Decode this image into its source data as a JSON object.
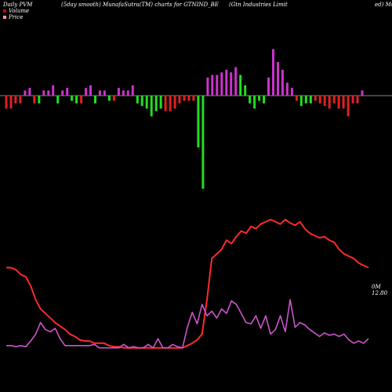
{
  "header": {
    "left": "Daily PVM",
    "mid": "(5day smooth) MunafaSutra(TM) charts for GTNIND_BE",
    "right": "(Gtn Industries Limit",
    "right2": "ed) Mu"
  },
  "legend": {
    "volume_label": "Volume",
    "volume_color": "#cc0000",
    "price_label": "Price",
    "price_color": "#ff9999"
  },
  "last_value": {
    "volume_text": "0M",
    "price_text": "12.80"
  },
  "colors": {
    "background": "#000000",
    "axis": "#aaaaaa",
    "up_bar": "#cc33cc",
    "down_bar_red": "#dd2222",
    "down_bar_green": "#22dd22",
    "price_line": "#ff2a2a",
    "volume_line": "#cc55cc"
  },
  "chart_data": {
    "type": "bar",
    "title": "",
    "xlabel": "",
    "ylabel": "",
    "grid": false,
    "bars": {
      "values": [
        -5,
        -5,
        -3,
        -3,
        2,
        3,
        -3,
        -3,
        2,
        2,
        4,
        -3,
        2,
        3,
        -2,
        -3,
        -3,
        3,
        4,
        -3,
        2,
        2,
        -2,
        -2,
        3,
        2,
        2,
        4,
        -3,
        -4,
        -5,
        -8,
        -6,
        -5,
        -6,
        -6,
        -5,
        -3,
        -2,
        -2,
        -2,
        -20,
        -36,
        7,
        8,
        8,
        9,
        10,
        9,
        11,
        8,
        4,
        -3,
        -5,
        -2,
        -3,
        7,
        18,
        13,
        10,
        5,
        3,
        -2,
        -4,
        -3,
        -3,
        -2,
        -3,
        -4,
        -5,
        -3,
        -5,
        -5,
        -8,
        -3,
        -3,
        2
      ],
      "colors": [
        "r",
        "r",
        "r",
        "r",
        "p",
        "p",
        "r",
        "g",
        "p",
        "p",
        "p",
        "g",
        "p",
        "p",
        "g",
        "g",
        "r",
        "p",
        "p",
        "g",
        "p",
        "p",
        "g",
        "r",
        "p",
        "p",
        "p",
        "p",
        "g",
        "g",
        "g",
        "g",
        "g",
        "g",
        "r",
        "r",
        "r",
        "r",
        "r",
        "r",
        "r",
        "g",
        "g",
        "p",
        "p",
        "p",
        "p",
        "p",
        "p",
        "p",
        "g",
        "g",
        "g",
        "g",
        "g",
        "g",
        "p",
        "p",
        "p",
        "p",
        "p",
        "p",
        "r",
        "g",
        "g",
        "g",
        "r",
        "r",
        "r",
        "r",
        "r",
        "r",
        "r",
        "r",
        "r",
        "r",
        "p"
      ]
    },
    "series": [
      {
        "name": "Price",
        "values": [
          88,
          88,
          86,
          82,
          80,
          72,
          60,
          52,
          48,
          44,
          40,
          37,
          34,
          30,
          28,
          25,
          24,
          24,
          22,
          22,
          22,
          20,
          19,
          19,
          18,
          18,
          18,
          18,
          18,
          18,
          18,
          18,
          18,
          18,
          18,
          18,
          18,
          20,
          22,
          25,
          30,
          60,
          96,
          100,
          104,
          112,
          109,
          115,
          120,
          118,
          124,
          122,
          126,
          128,
          130,
          128,
          126,
          130,
          127,
          125,
          128,
          122,
          118,
          116,
          114,
          115,
          112,
          110,
          104,
          100,
          98,
          96,
          92,
          90,
          88
        ]
      },
      {
        "name": "Volume",
        "values": [
          20,
          20,
          19,
          20,
          19,
          24,
          30,
          40,
          34,
          32,
          35,
          26,
          20,
          20,
          20,
          20,
          20,
          20,
          21,
          18,
          18,
          18,
          18,
          18,
          21,
          18,
          19,
          18,
          18,
          21,
          18,
          26,
          18,
          18,
          21,
          19,
          18,
          36,
          49,
          39,
          56,
          46,
          50,
          44,
          52,
          48,
          59,
          56,
          48,
          40,
          39,
          46,
          35,
          46,
          30,
          34,
          46,
          32,
          60,
          36,
          40,
          38,
          34,
          31,
          28,
          31,
          29,
          30,
          28,
          30,
          25,
          22,
          24,
          22,
          26
        ]
      }
    ]
  }
}
